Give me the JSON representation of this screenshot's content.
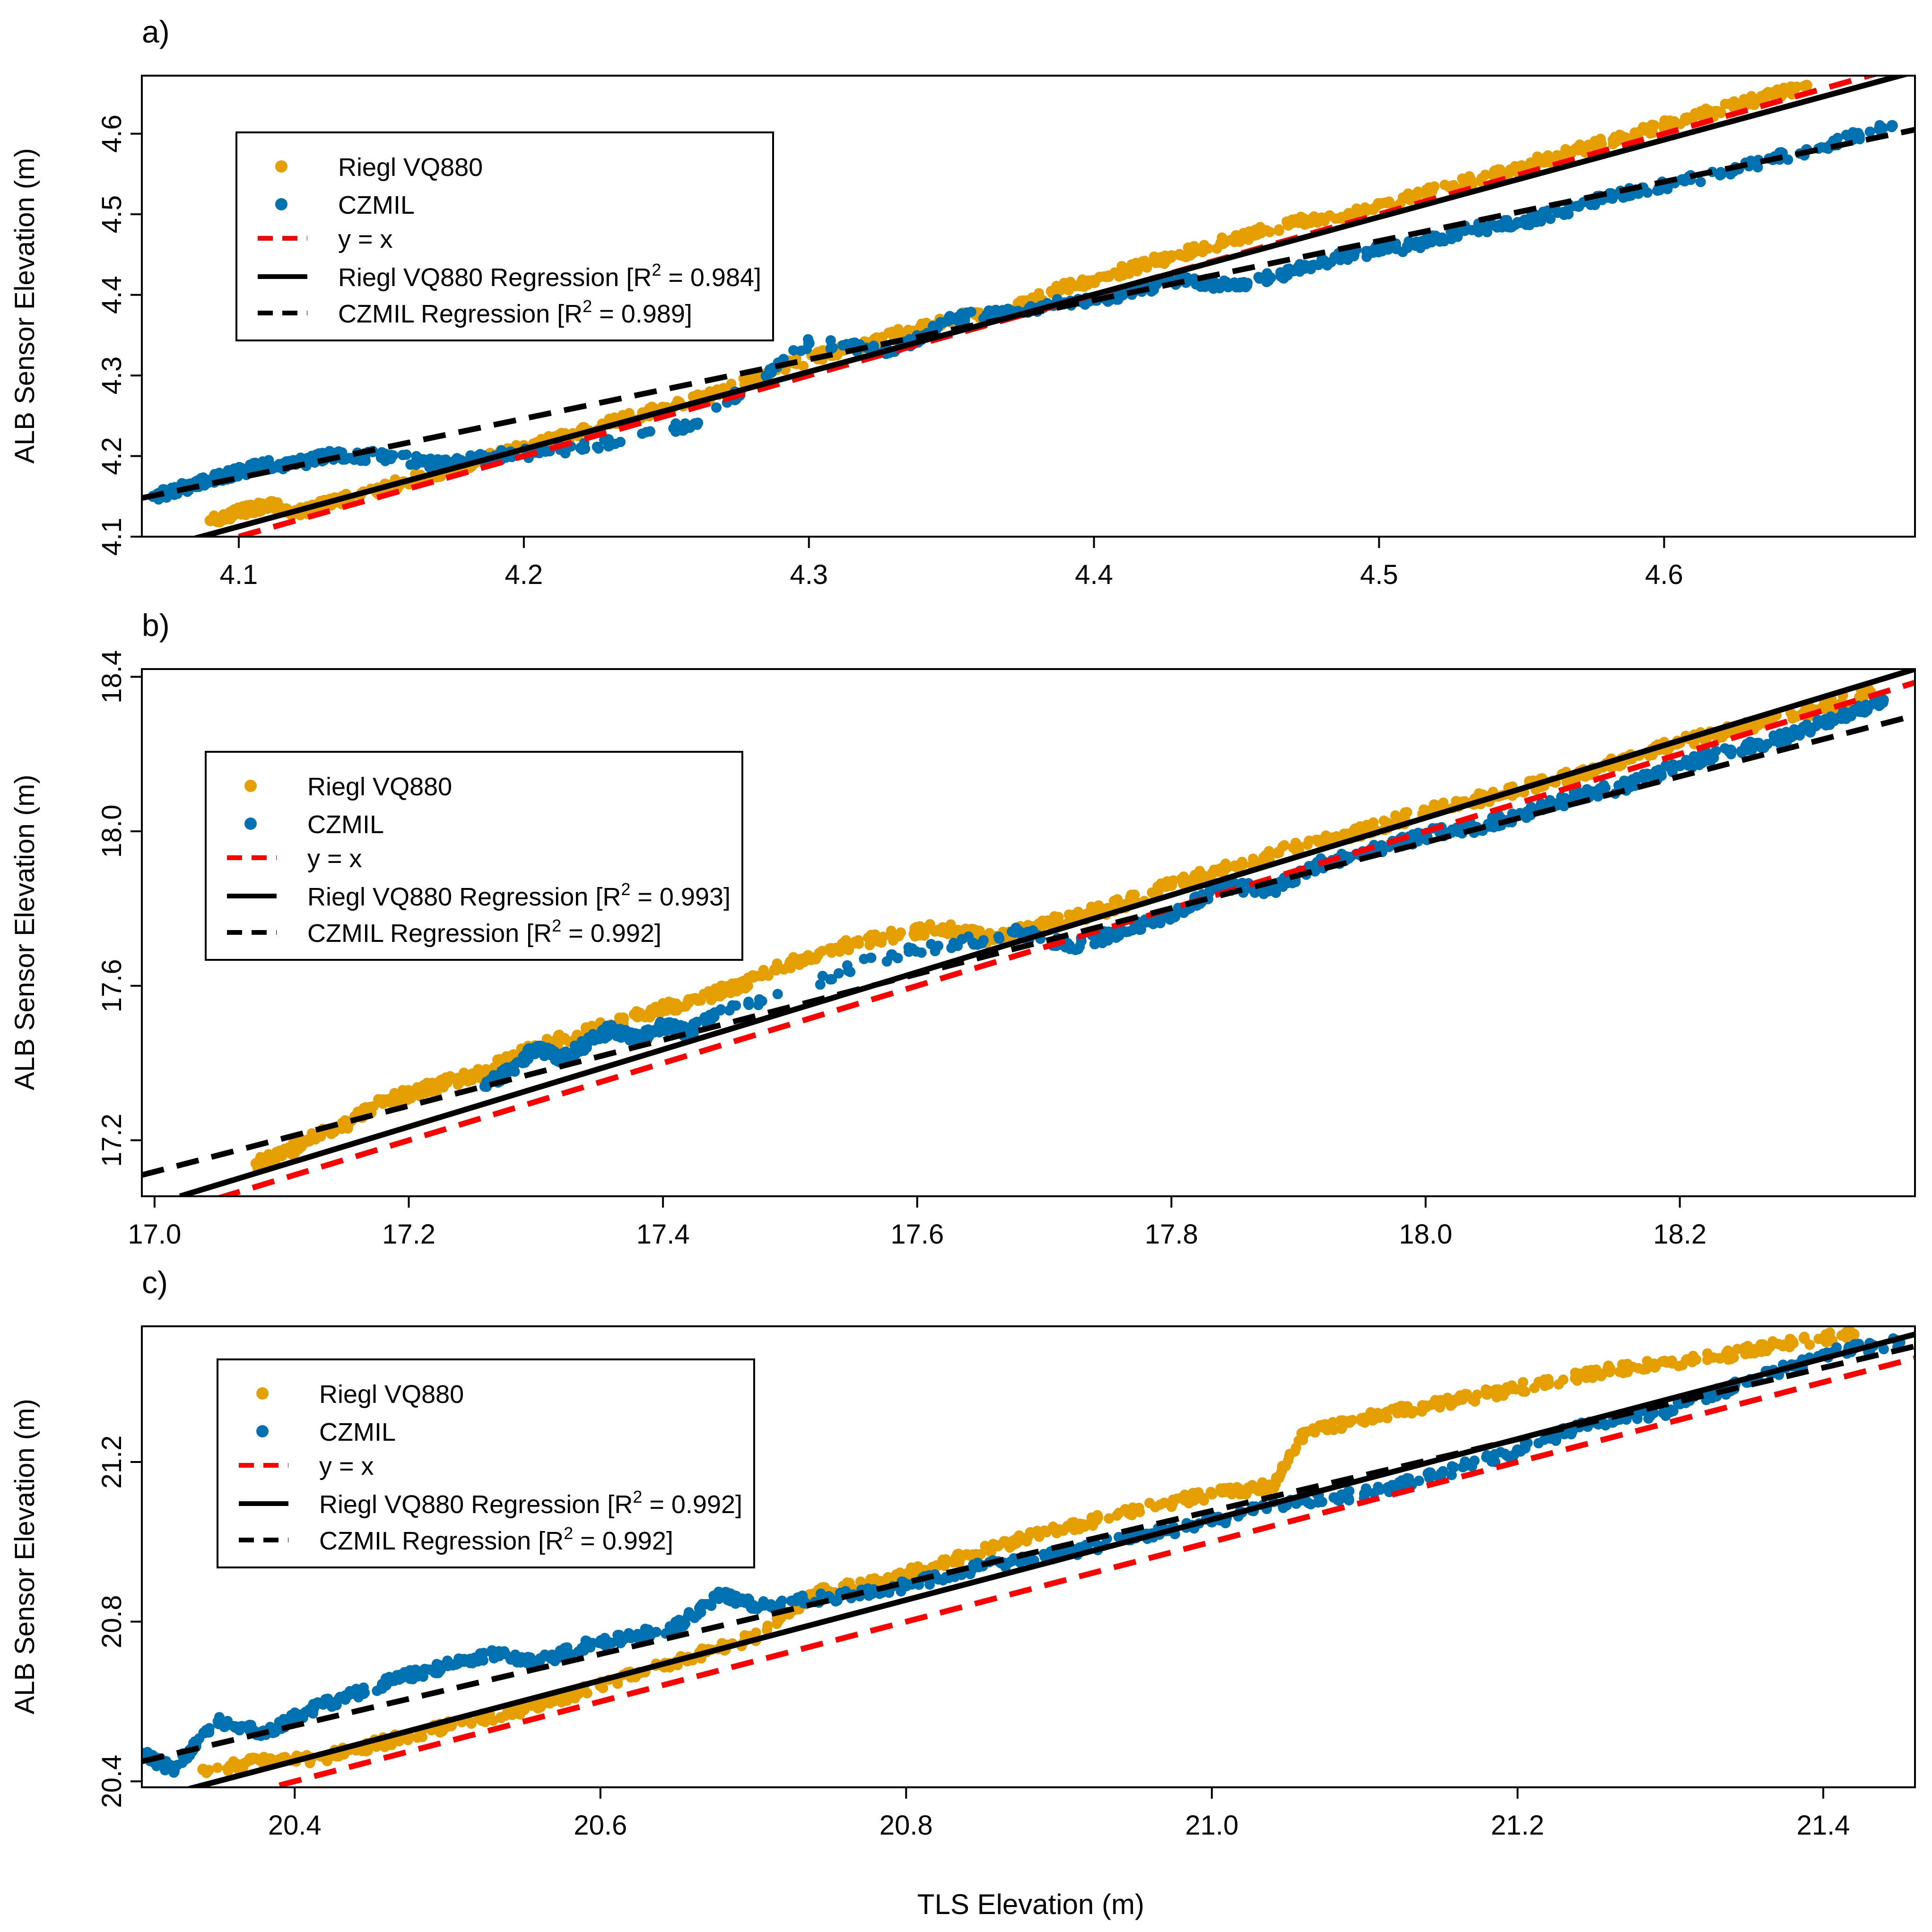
{
  "figure": {
    "xlabel": "TLS Elevation (m)",
    "ylabel": "ALB Sensor Elevation (m)"
  },
  "colors": {
    "riegl": "#E69F00",
    "czmil": "#0072B2",
    "identity": "#FF0000",
    "regression": "#000000"
  },
  "chart_data": [
    {
      "type": "scatter",
      "panel_label": "a)",
      "xlabel": "",
      "ylabel": "ALB Sensor Elevation (m)",
      "xlim": [
        4.066,
        4.688
      ],
      "ylim": [
        4.1,
        4.672
      ],
      "xticks": [
        "4.1",
        "4.2",
        "4.3",
        "4.4",
        "4.5",
        "4.6"
      ],
      "yticks": [
        "4.1",
        "4.2",
        "4.3",
        "4.4",
        "4.5",
        "4.6"
      ],
      "legend": {
        "placement": "top-left",
        "entries": [
          {
            "label": "Riegl VQ880",
            "kind": "point",
            "series": "riegl"
          },
          {
            "label": "CZMIL",
            "kind": "point",
            "series": "czmil"
          },
          {
            "label": "y = x",
            "kind": "dashed",
            "series": "identity"
          },
          {
            "label": "Riegl VQ880 Regression [R",
            "sup": "2",
            "tail": " = 0.984]",
            "kind": "solid",
            "series": "regression"
          },
          {
            "label": "CZMIL Regression [R",
            "sup": "2",
            "tail": " = 0.989]",
            "kind": "dashed",
            "series": "regression"
          }
        ]
      },
      "lines": [
        {
          "name": "y = x",
          "style": "dashed",
          "color": "identity",
          "x": [
            4.1,
            4.688
          ],
          "y": [
            4.1,
            4.688
          ]
        },
        {
          "name": "Riegl VQ880 Regression",
          "style": "solid",
          "color": "regression",
          "x": [
            4.066,
            4.688
          ],
          "y": [
            4.08,
            4.677
          ]
        },
        {
          "name": "CZMIL Regression",
          "style": "dashed",
          "color": "regression",
          "x": [
            4.066,
            4.688
          ],
          "y": [
            4.148,
            4.605
          ]
        }
      ],
      "series": [
        {
          "name": "Riegl VQ880",
          "color": "riegl",
          "x": [
            4.09,
            4.1,
            4.11,
            4.12,
            4.13,
            4.15,
            4.17,
            4.19,
            4.21,
            4.23,
            4.25,
            4.27,
            4.29,
            4.31,
            4.33,
            4.35,
            4.37,
            4.39,
            4.41,
            4.43,
            4.45,
            4.47,
            4.49,
            4.51,
            4.53,
            4.55,
            4.57,
            4.59,
            4.61,
            4.63,
            4.65
          ],
          "y": [
            4.12,
            4.13,
            4.14,
            4.13,
            4.14,
            4.16,
            4.18,
            4.2,
            4.22,
            4.24,
            4.26,
            4.28,
            4.31,
            4.33,
            4.35,
            4.37,
            4.38,
            4.41,
            4.43,
            4.45,
            4.47,
            4.49,
            4.5,
            4.52,
            4.54,
            4.56,
            4.58,
            4.6,
            4.62,
            4.64,
            4.66
          ]
        },
        {
          "name": "CZMIL",
          "color": "czmil",
          "x": [
            4.07,
            4.08,
            4.09,
            4.1,
            4.11,
            4.12,
            4.13,
            4.15,
            4.17,
            4.19,
            4.22,
            4.26,
            4.3,
            4.33,
            4.35,
            4.37,
            4.39,
            4.41,
            4.43,
            4.45,
            4.47,
            4.49,
            4.51,
            4.53,
            4.55,
            4.57,
            4.59,
            4.62,
            4.65,
            4.68
          ],
          "y": [
            4.15,
            4.16,
            4.17,
            4.18,
            4.19,
            4.19,
            4.2,
            4.2,
            4.19,
            4.2,
            4.21,
            4.24,
            4.34,
            4.33,
            4.37,
            4.38,
            4.39,
            4.4,
            4.42,
            4.41,
            4.43,
            4.45,
            4.46,
            4.48,
            4.49,
            4.51,
            4.53,
            4.55,
            4.58,
            4.61
          ]
        }
      ]
    },
    {
      "type": "scatter",
      "panel_label": "b)",
      "xlabel": "",
      "ylabel": "ALB Sensor Elevation (m)",
      "xlim": [
        16.99,
        18.385
      ],
      "ylim": [
        17.055,
        18.42
      ],
      "xticks": [
        "17.0",
        "17.2",
        "17.4",
        "17.6",
        "17.8",
        "18.0",
        "18.2"
      ],
      "yticks": [
        "17.2",
        "17.6",
        "18.0",
        "18.4"
      ],
      "legend": {
        "placement": "middle-left",
        "entries": [
          {
            "label": "Riegl VQ880",
            "kind": "point",
            "series": "riegl"
          },
          {
            "label": "CZMIL",
            "kind": "point",
            "series": "czmil"
          },
          {
            "label": "y = x",
            "kind": "dashed",
            "series": "identity"
          },
          {
            "label": "Riegl VQ880 Regression [R",
            "sup": "2",
            "tail": " = 0.993]",
            "kind": "solid",
            "series": "regression"
          },
          {
            "label": "CZMIL Regression [R",
            "sup": "2",
            "tail": " = 0.992]",
            "kind": "dashed",
            "series": "regression"
          }
        ]
      },
      "lines": [
        {
          "name": "y = x",
          "style": "dashed",
          "color": "identity",
          "x": [
            17.05,
            18.385
          ],
          "y": [
            17.05,
            18.385
          ]
        },
        {
          "name": "Riegl VQ880 Regression",
          "style": "solid",
          "color": "regression",
          "x": [
            17.02,
            18.385
          ],
          "y": [
            17.055,
            18.42
          ]
        },
        {
          "name": "CZMIL Regression",
          "style": "dashed",
          "color": "regression",
          "x": [
            16.99,
            18.385
          ],
          "y": [
            17.11,
            18.3
          ]
        }
      ],
      "series": [
        {
          "name": "Riegl VQ880",
          "color": "riegl",
          "x": [
            17.08,
            17.1,
            17.12,
            17.15,
            17.18,
            17.2,
            17.23,
            17.26,
            17.3,
            17.34,
            17.38,
            17.42,
            17.46,
            17.5,
            17.54,
            17.58,
            17.62,
            17.66,
            17.7,
            17.75,
            17.8,
            17.85,
            17.9,
            17.95,
            18.0,
            18.05,
            18.1,
            18.15,
            18.2,
            18.25,
            18.3,
            18.35
          ],
          "y": [
            17.14,
            17.16,
            17.2,
            17.24,
            17.3,
            17.32,
            17.35,
            17.38,
            17.44,
            17.48,
            17.52,
            17.56,
            17.6,
            17.66,
            17.7,
            17.73,
            17.75,
            17.72,
            17.76,
            17.8,
            17.86,
            17.91,
            17.96,
            18.0,
            18.05,
            18.09,
            18.13,
            18.18,
            18.23,
            18.27,
            18.31,
            18.36
          ]
        },
        {
          "name": "CZMIL",
          "color": "czmil",
          "x": [
            17.26,
            17.28,
            17.3,
            17.32,
            17.34,
            17.36,
            17.38,
            17.4,
            17.42,
            17.44,
            17.58,
            17.68,
            17.72,
            17.76,
            17.8,
            17.84,
            17.88,
            17.92,
            17.96,
            18.0,
            18.04,
            18.08,
            18.12,
            18.16,
            18.2,
            18.24,
            18.28,
            18.32,
            18.36
          ],
          "y": [
            17.34,
            17.38,
            17.44,
            17.41,
            17.45,
            17.49,
            17.46,
            17.5,
            17.48,
            17.52,
            17.68,
            17.74,
            17.7,
            17.74,
            17.78,
            17.86,
            17.85,
            17.92,
            17.95,
            17.99,
            18.01,
            18.05,
            18.09,
            18.12,
            18.17,
            18.21,
            18.24,
            18.29,
            18.34
          ]
        }
      ]
    },
    {
      "type": "scatter",
      "panel_label": "c)",
      "xlabel": "TLS Elevation (m)",
      "ylabel": "ALB Sensor Elevation (m)",
      "xlim": [
        20.3,
        21.46
      ],
      "ylim": [
        20.385,
        21.54
      ],
      "xticks": [
        "20.4",
        "20.6",
        "20.8",
        "21.0",
        "21.2",
        "21.4"
      ],
      "yticks": [
        "20.4",
        "20.8",
        "21.2"
      ],
      "legend": {
        "placement": "top-left",
        "entries": [
          {
            "label": "Riegl VQ880",
            "kind": "point",
            "series": "riegl"
          },
          {
            "label": "CZMIL",
            "kind": "point",
            "series": "czmil"
          },
          {
            "label": "y = x",
            "kind": "dashed",
            "series": "identity"
          },
          {
            "label": "Riegl VQ880 Regression [R",
            "sup": "2",
            "tail": " = 0.992]",
            "kind": "solid",
            "series": "regression"
          },
          {
            "label": "CZMIL Regression [R",
            "sup": "2",
            "tail": " = 0.992]",
            "kind": "dashed",
            "series": "regression"
          }
        ]
      },
      "lines": [
        {
          "name": "y = x",
          "style": "dashed",
          "color": "identity",
          "x": [
            20.39,
            21.46
          ],
          "y": [
            20.39,
            21.46
          ]
        },
        {
          "name": "Riegl VQ880 Regression",
          "style": "solid",
          "color": "regression",
          "x": [
            20.3,
            21.46
          ],
          "y": [
            20.35,
            21.52
          ]
        },
        {
          "name": "CZMIL Regression",
          "style": "dashed",
          "color": "regression",
          "x": [
            20.3,
            21.46
          ],
          "y": [
            20.45,
            21.49
          ]
        }
      ],
      "series": [
        {
          "name": "Riegl VQ880",
          "color": "riegl",
          "x": [
            20.34,
            20.38,
            20.42,
            20.46,
            20.5,
            20.55,
            20.6,
            20.65,
            20.7,
            20.74,
            20.78,
            20.82,
            20.86,
            20.9,
            20.95,
            21.0,
            21.04,
            21.06,
            21.1,
            21.14,
            21.18,
            21.22,
            21.26,
            21.3,
            21.34,
            21.38,
            21.42
          ],
          "y": [
            20.43,
            20.45,
            20.46,
            20.5,
            20.54,
            20.58,
            20.64,
            20.7,
            20.76,
            20.87,
            20.9,
            20.94,
            20.99,
            21.03,
            21.08,
            21.12,
            21.14,
            21.27,
            21.31,
            21.34,
            21.37,
            21.4,
            21.43,
            21.45,
            21.47,
            21.5,
            21.52
          ]
        },
        {
          "name": "CZMIL",
          "color": "czmil",
          "x": [
            20.3,
            20.32,
            20.35,
            20.38,
            20.41,
            20.44,
            20.47,
            20.5,
            20.53,
            20.56,
            20.59,
            20.62,
            20.65,
            20.68,
            20.7,
            20.75,
            20.8,
            20.85,
            20.9,
            20.95,
            21.0,
            21.05,
            21.1,
            21.15,
            21.2,
            21.25,
            21.3,
            21.35,
            21.4,
            21.45
          ],
          "y": [
            20.47,
            20.43,
            20.55,
            20.52,
            20.58,
            20.62,
            20.66,
            20.69,
            20.72,
            20.7,
            20.74,
            20.76,
            20.79,
            20.87,
            20.84,
            20.86,
            20.89,
            20.94,
            20.97,
            21.01,
            21.05,
            21.1,
            21.12,
            21.17,
            21.23,
            21.3,
            21.33,
            21.4,
            21.47,
            21.5
          ]
        }
      ]
    }
  ]
}
